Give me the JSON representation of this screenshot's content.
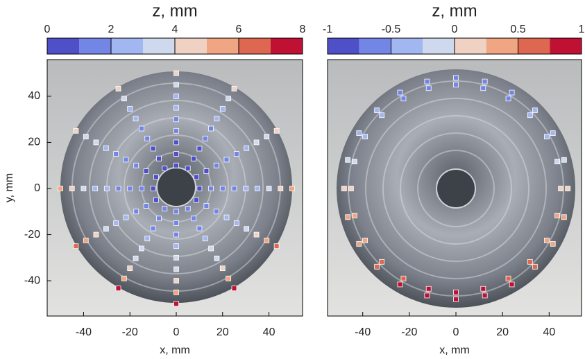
{
  "chart_data": [
    {
      "type": "scatter",
      "title": "z, mm",
      "xlabel": "x, mm",
      "ylabel": "y, mm",
      "xlim": [
        -55.7,
        54.5
      ],
      "ylim": [
        -55.3,
        55.9
      ],
      "xticks": [
        -40,
        -20,
        0,
        20,
        40
      ],
      "yticks": [
        -40,
        -20,
        0,
        20,
        40
      ],
      "colorbar": {
        "lim": [
          0,
          8
        ],
        "ticks": [
          0,
          2,
          4,
          6,
          8
        ],
        "colors": [
          "#4f4fc8",
          "#7386e6",
          "#a2b6f2",
          "#cfd9ee",
          "#efd2c3",
          "#f0a583",
          "#dd6750",
          "#bf1133"
        ]
      },
      "x": [
        10,
        15,
        20,
        25,
        30,
        35,
        40,
        45,
        50,
        8.7,
        13.0,
        17.3,
        21.7,
        26.0,
        30.3,
        34.6,
        39.0,
        43.3,
        5,
        7.5,
        10,
        12.5,
        15,
        17.5,
        20,
        22.5,
        25,
        0,
        0,
        0,
        0,
        0,
        0,
        0,
        0,
        0,
        -5,
        -7.5,
        -10,
        -12.5,
        -15,
        -17.5,
        -20,
        -22.5,
        -25,
        -8.7,
        -13.0,
        -17.3,
        -21.7,
        -26.0,
        -30.3,
        -34.6,
        -39.0,
        -43.3,
        -10,
        -15,
        -20,
        -25,
        -30,
        -35,
        -40,
        -45,
        -50,
        -8.7,
        -13.0,
        -17.3,
        -21.7,
        -26.0,
        -30.3,
        -34.6,
        -39.0,
        -43.3,
        -5,
        -7.5,
        -10,
        -12.5,
        -15,
        -17.5,
        -20,
        -22.5,
        -25,
        0,
        0,
        0,
        0,
        0,
        0,
        0,
        0,
        0,
        5,
        7.5,
        10,
        12.5,
        15,
        17.5,
        20,
        22.5,
        25,
        8.7,
        13.0,
        17.3,
        21.7,
        26.0,
        30.3,
        34.6,
        39.0,
        43.3
      ],
      "y": [
        0,
        0,
        0,
        0,
        0,
        0,
        0,
        0,
        0,
        5,
        7.5,
        10,
        12.5,
        15,
        17.5,
        20,
        22.5,
        25,
        8.7,
        13.0,
        17.3,
        21.7,
        26.0,
        30.3,
        34.6,
        39.0,
        43.3,
        10,
        15,
        20,
        25,
        30,
        35,
        40,
        45,
        50,
        8.7,
        13.0,
        17.3,
        21.7,
        26.0,
        30.3,
        34.6,
        39.0,
        43.3,
        5,
        7.5,
        10,
        12.5,
        15,
        17.5,
        20,
        22.5,
        25,
        0,
        0,
        0,
        0,
        0,
        0,
        0,
        0,
        0,
        -5,
        -7.5,
        -10,
        -12.5,
        -15,
        -17.5,
        -20,
        -22.5,
        -25,
        -8.7,
        -13.0,
        -17.3,
        -21.7,
        -26.0,
        -30.3,
        -34.6,
        -39.0,
        -43.3,
        -10,
        -15,
        -20,
        -25,
        -30,
        -35,
        -40,
        -45,
        -50,
        -8.7,
        -13.0,
        -17.3,
        -21.7,
        -26.0,
        -30.3,
        -34.6,
        -39.0,
        -43.3,
        -5,
        -7.5,
        -10,
        -12.5,
        -15,
        -17.5,
        -20,
        -22.5,
        -25
      ],
      "z": [
        0.8,
        1.0,
        1.4,
        1.8,
        2.3,
        2.9,
        3.6,
        4.5,
        5.4,
        0.7,
        0.8,
        1.1,
        1.5,
        1.9,
        2.5,
        3.1,
        3.9,
        4.7,
        0.6,
        0.7,
        0.9,
        1.2,
        1.7,
        2.2,
        2.8,
        3.5,
        4.3,
        0.5,
        0.7,
        0.9,
        1.2,
        1.6,
        2.1,
        2.6,
        3.3,
        4.1,
        0.6,
        0.7,
        0.9,
        1.2,
        1.7,
        2.2,
        2.8,
        3.5,
        4.3,
        0.7,
        0.8,
        1.1,
        1.5,
        1.9,
        2.5,
        3.1,
        3.9,
        4.7,
        0.8,
        1.0,
        1.4,
        1.8,
        2.3,
        2.9,
        3.6,
        4.5,
        5.4,
        0.9,
        1.2,
        1.6,
        2.1,
        2.7,
        3.4,
        4.1,
        5.0,
        6.3,
        1.0,
        1.4,
        1.8,
        2.3,
        3.0,
        3.7,
        4.5,
        5.4,
        7.2,
        1.0,
        1.4,
        1.9,
        2.4,
        3.1,
        3.8,
        4.6,
        5.6,
        7.6,
        1.0,
        1.4,
        1.8,
        2.3,
        3.0,
        3.7,
        4.5,
        5.4,
        7.2,
        0.9,
        1.2,
        1.6,
        2.1,
        2.7,
        3.4,
        4.1,
        5.0,
        6.3
      ]
    },
    {
      "type": "scatter",
      "title": "z, mm",
      "xlabel": "x, mm",
      "xlim": [
        -55.1,
        53.9
      ],
      "ylim": [
        -55.3,
        55.9
      ],
      "xticks": [
        -40,
        -20,
        0,
        20,
        40
      ],
      "colorbar": {
        "lim": [
          -1,
          1
        ],
        "ticks": [
          -1,
          -0.5,
          0,
          0.5,
          1
        ],
        "colors": [
          "#4f4fc8",
          "#7386e6",
          "#a2b6f2",
          "#cfd9ee",
          "#efd2c3",
          "#f0a583",
          "#dd6750",
          "#bf1133"
        ]
      },
      "x": [
        48,
        46.4,
        41.6,
        33.9,
        24,
        12.4,
        0,
        -12.4,
        -24,
        -33.9,
        -41.6,
        -46.4,
        -48,
        -46.4,
        -41.6,
        -33.9,
        -24,
        -12.4,
        0,
        12.4,
        24,
        33.9,
        41.6,
        46.4,
        45,
        43.5,
        39.0,
        31.8,
        22.5,
        11.7,
        0,
        -11.7,
        -22.5,
        -31.8,
        -39.0,
        -43.5,
        -45,
        -43.5,
        -39.0,
        -31.8,
        -22.5,
        -11.7,
        0,
        11.7,
        22.5,
        31.8,
        39.0,
        43.5
      ],
      "y": [
        0,
        12.4,
        24,
        33.9,
        41.6,
        46.4,
        48,
        46.4,
        41.6,
        33.9,
        24,
        12.4,
        0,
        -12.4,
        -24,
        -33.9,
        -41.6,
        -46.4,
        -48,
        -46.4,
        -41.6,
        -33.9,
        -24,
        -12.4,
        0,
        11.7,
        22.5,
        31.8,
        39.0,
        43.5,
        45,
        43.5,
        39.0,
        31.8,
        22.5,
        11.7,
        0,
        -11.7,
        -22.5,
        -31.8,
        -39.0,
        -43.5,
        -45,
        -43.5,
        -39.0,
        -31.8,
        -22.5,
        -11.7
      ],
      "z": [
        0.1,
        -0.1,
        -0.28,
        -0.44,
        -0.57,
        -0.64,
        -0.67,
        -0.64,
        -0.57,
        -0.44,
        -0.28,
        -0.1,
        0.1,
        0.3,
        0.48,
        0.64,
        0.77,
        0.84,
        0.87,
        0.84,
        0.77,
        0.64,
        0.48,
        0.3,
        0.1,
        -0.09,
        -0.26,
        -0.41,
        -0.52,
        -0.6,
        -0.62,
        -0.6,
        -0.52,
        -0.41,
        -0.26,
        -0.09,
        0.1,
        0.29,
        0.46,
        0.61,
        0.72,
        0.8,
        0.82,
        0.8,
        0.72,
        0.61,
        0.46,
        0.29
      ]
    }
  ]
}
